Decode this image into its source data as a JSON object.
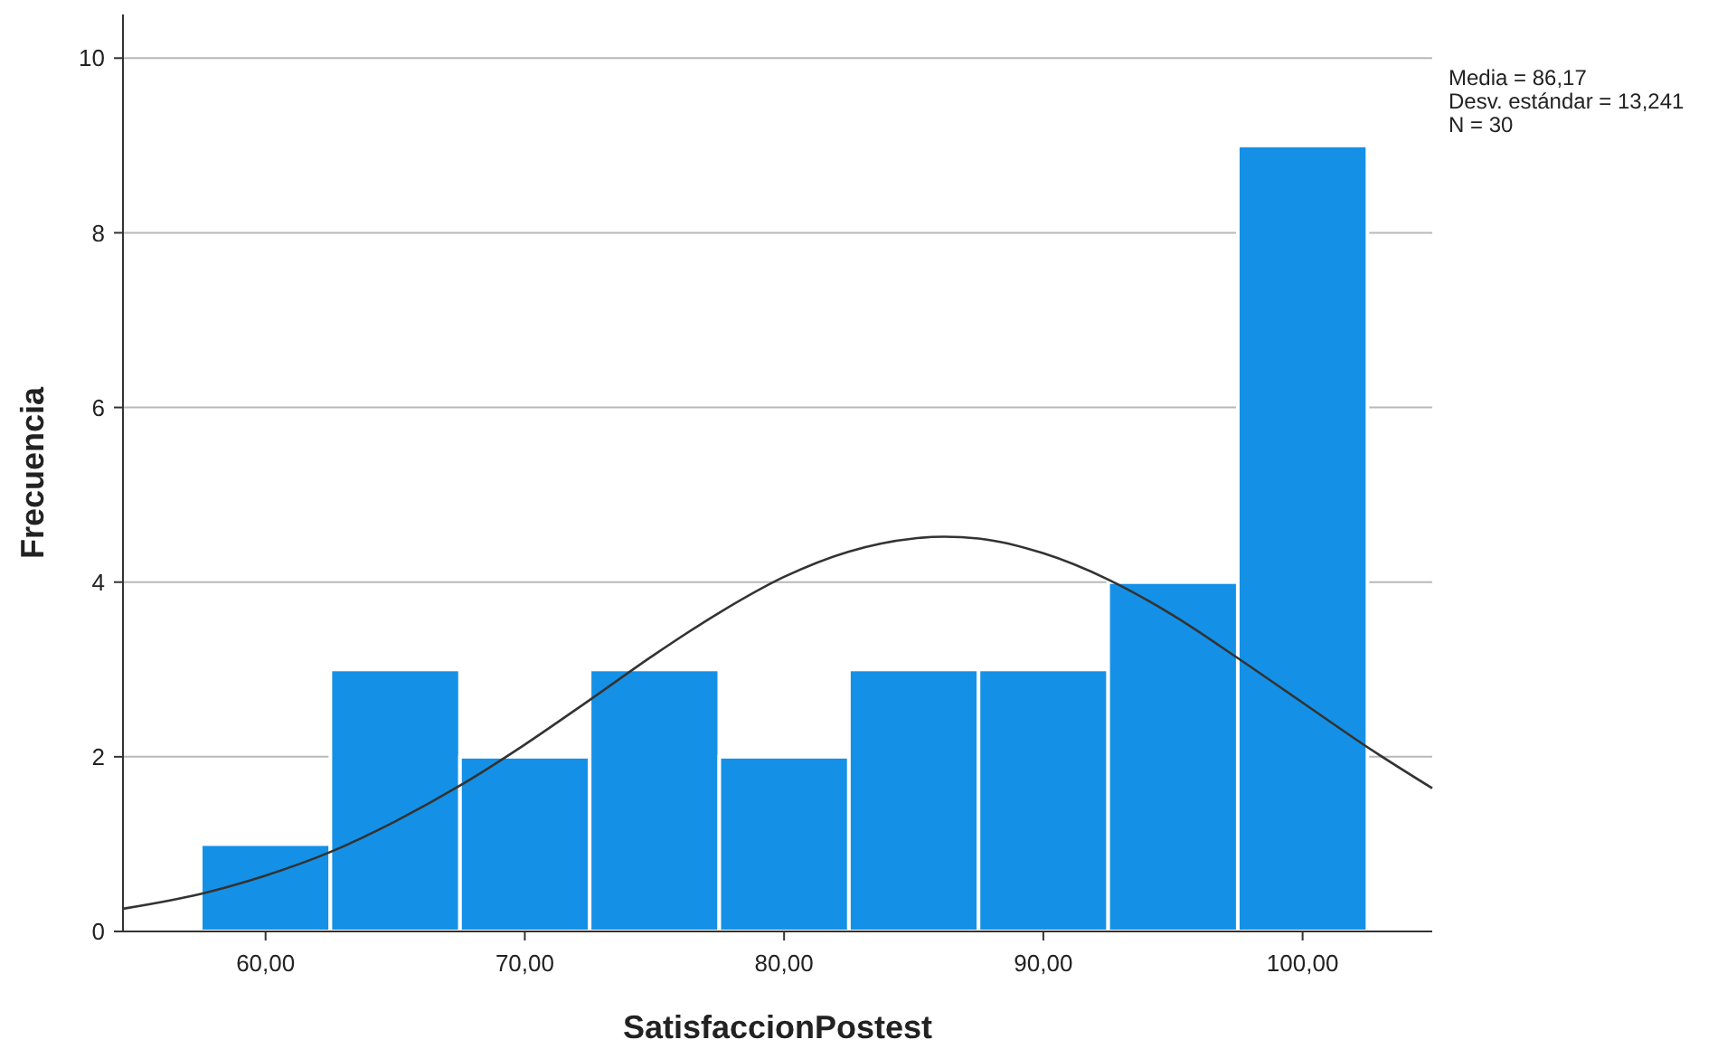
{
  "chart_data": {
    "type": "histogram",
    "xlabel": "SatisfaccionPostest",
    "ylabel": "Frecuencia",
    "annotations": [
      "Media = 86,17",
      "Desv. estándar = 13,241",
      "N = 30"
    ],
    "series": [
      {
        "color": "#1491e6",
        "bins": [
          57.5,
          62.5,
          67.5,
          72.5,
          77.5,
          82.5,
          87.5,
          92.5,
          97.5,
          102.5
        ],
        "values": [
          1,
          3,
          2,
          3,
          2,
          3,
          3,
          4,
          9
        ]
      },
      {
        "type": "line",
        "color": "#333333",
        "x": [
          54.5,
          57.5,
          60,
          62.5,
          65,
          67.5,
          70,
          72.5,
          75,
          77.5,
          80,
          82.5,
          85,
          86.17,
          87.5,
          90,
          92.5,
          95,
          97.5,
          100,
          102.5,
          105
        ],
        "values": [
          0.26,
          0.43,
          0.64,
          0.91,
          1.26,
          1.67,
          2.14,
          2.65,
          3.17,
          3.65,
          4.06,
          4.35,
          4.5,
          4.52,
          4.5,
          4.33,
          4.03,
          3.62,
          3.13,
          2.62,
          2.11,
          1.64
        ]
      }
    ],
    "xlim": [
      54.5,
      105
    ],
    "ylim": [
      0,
      10.5
    ],
    "xticks": [
      {
        "value": 60,
        "label": "60,00"
      },
      {
        "value": 70,
        "label": "70,00"
      },
      {
        "value": 80,
        "label": "80,00"
      },
      {
        "value": 90,
        "label": "90,00"
      },
      {
        "value": 100,
        "label": "100,00"
      }
    ],
    "yticks": [
      0,
      2,
      4,
      6,
      8,
      10
    ],
    "grid": "y"
  }
}
